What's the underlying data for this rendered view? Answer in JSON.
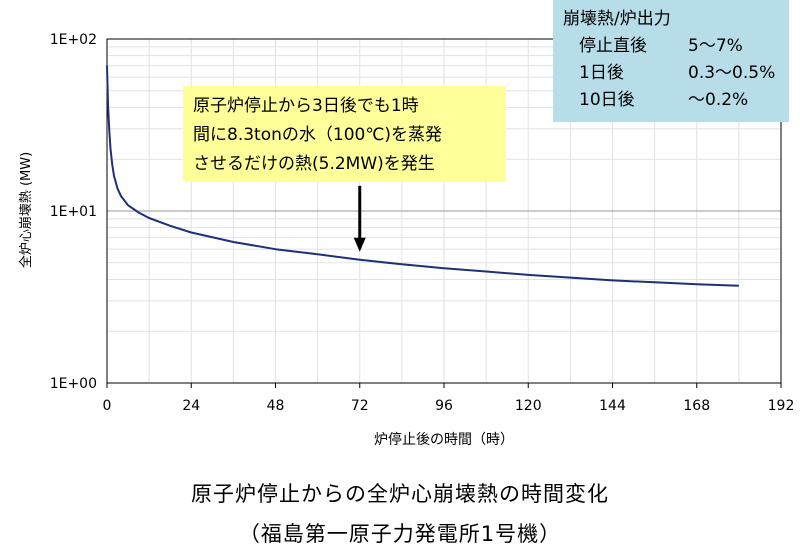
{
  "chart_data": {
    "type": "line",
    "y_scale": "log",
    "ylabel": "全炉心崩壊熱 (MW)",
    "xlabel": "炉停止後の時間（時）",
    "xlim": [
      0,
      192
    ],
    "ylim": [
      1,
      100
    ],
    "x_ticks": [
      "0",
      "24",
      "48",
      "72",
      "96",
      "120",
      "144",
      "168",
      "192"
    ],
    "y_ticks": [
      "1E+00",
      "1E+01",
      "1E+02"
    ],
    "grid": true,
    "series": [
      {
        "color": "#1f2f7a",
        "x": [
          0,
          0.3,
          0.7,
          1,
          1.5,
          2,
          3,
          4,
          6,
          9,
          12,
          18,
          24,
          36,
          48,
          60,
          72,
          84,
          96,
          108,
          120,
          132,
          144,
          156,
          168,
          180
        ],
        "y": [
          70,
          40,
          28,
          23,
          18.5,
          16,
          13.5,
          12.2,
          10.8,
          9.8,
          9.1,
          8.2,
          7.5,
          6.6,
          6.0,
          5.6,
          5.2,
          4.9,
          4.65,
          4.45,
          4.25,
          4.1,
          3.95,
          3.85,
          3.75,
          3.68
        ]
      }
    ]
  },
  "callout": {
    "lines": [
      "原子炉停止から3日後でも1時",
      "間に8.3tonの水（100℃)を蒸発",
      "させるだけの熱(5.2MW)を発生"
    ],
    "arrow_x": 72,
    "arrow_y_from": 14,
    "arrow_y_to": 5.8
  },
  "info_box": {
    "title": "崩壊熱/炉出力",
    "rows": [
      {
        "label": "停止直後",
        "value": "5～7%"
      },
      {
        "label": "1日後",
        "value": "0.3～0.5%"
      },
      {
        "label": "10日後",
        "value": "～0.2%"
      }
    ],
    "background": "#b7dde8"
  },
  "bottom": {
    "title": "原子炉停止からの全炉心崩壊熱の時間変化",
    "subtitle": "（福島第一原子力発電所1号機）"
  }
}
